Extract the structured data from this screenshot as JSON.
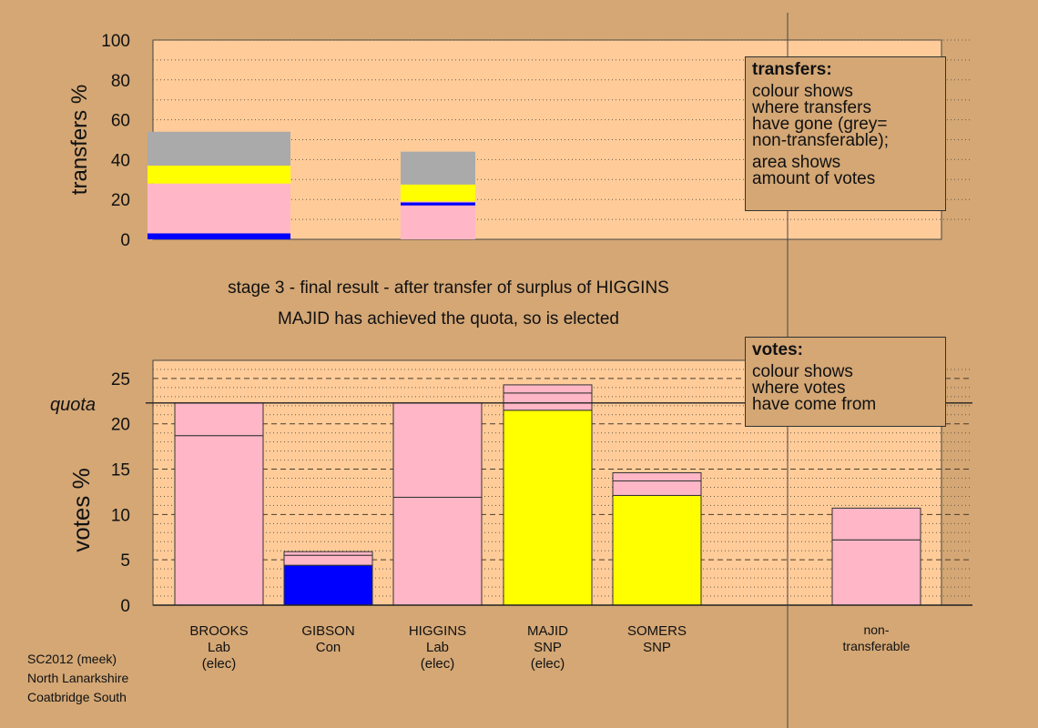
{
  "chart_data": [
    {
      "type": "bar",
      "stacked": true,
      "ylabel": "transfers %",
      "ylim": [
        0,
        100
      ],
      "yticks": [
        0,
        20,
        40,
        60,
        80,
        100
      ],
      "grid": true,
      "bars": [
        {
          "segments": [
            {
              "color": "#0000ff",
              "value": 3
            },
            {
              "color": "#ffb6c6",
              "value": 25
            },
            {
              "color": "#ffff00",
              "value": 9
            },
            {
              "color": "#aaaaaa",
              "value": 17
            }
          ]
        },
        {
          "segments": [
            {
              "color": "#ffb6c6",
              "value": 17
            },
            {
              "color": "#0000ff",
              "value": 1.5
            },
            {
              "color": "#ffb6c6",
              "value": 0.5
            },
            {
              "color": "#ffff00",
              "value": 8.5
            },
            {
              "color": "#aaaaaa",
              "value": 16.5
            }
          ]
        }
      ]
    },
    {
      "type": "bar",
      "stacked": true,
      "ylabel": "votes %",
      "ylim": [
        0,
        27
      ],
      "yticks": [
        0,
        5,
        10,
        15,
        20,
        25
      ],
      "grid": true,
      "quota": 22.3,
      "quota_label": "quota",
      "categories": [
        {
          "lines": [
            "BROOKS",
            "Lab",
            "(elec)"
          ],
          "segments": [
            {
              "color": "#ffb6c6",
              "value": 18.7
            },
            {
              "color": "#ffb6c6",
              "value": 3.6
            }
          ]
        },
        {
          "lines": [
            "GIBSON",
            "Con"
          ],
          "segments": [
            {
              "color": "#0000ff",
              "value": 4.4
            },
            {
              "color": "#ffb6c6",
              "value": 1.1
            },
            {
              "color": "#ffb6c6",
              "value": 0.4
            }
          ]
        },
        {
          "lines": [
            "HIGGINS",
            "Lab",
            "(elec)"
          ],
          "segments": [
            {
              "color": "#ffb6c6",
              "value": 11.9
            },
            {
              "color": "#ffb6c6",
              "value": 10.4
            }
          ]
        },
        {
          "lines": [
            "MAJID",
            "SNP",
            "(elec)"
          ],
          "segments": [
            {
              "color": "#ffff00",
              "value": 21.5
            },
            {
              "color": "#ffb6c6",
              "value": 1.9
            },
            {
              "color": "#ffb6c6",
              "value": 0.9
            }
          ]
        },
        {
          "lines": [
            "SOMERS",
            "SNP"
          ],
          "segments": [
            {
              "color": "#ffff00",
              "value": 12.1
            },
            {
              "color": "#ffb6c6",
              "value": 1.6
            },
            {
              "color": "#ffb6c6",
              "value": 0.9
            }
          ]
        },
        {
          "lines": [
            "non-",
            "transferable"
          ],
          "segments": [
            {
              "color": "#ffb6c6",
              "value": 7.2
            },
            {
              "color": "#ffb6c6",
              "value": 3.5
            }
          ]
        }
      ]
    }
  ],
  "captions": {
    "line1": "stage 3 - final result - after transfer of surplus of HIGGINS",
    "line2": "MAJID has achieved the quota, so is elected"
  },
  "legend_transfers": {
    "title": "transfers:",
    "l1": "colour shows",
    "l2": "where transfers",
    "l3": "have gone (grey=",
    "l4": "non-transferable);",
    "l5": "area shows",
    "l6": "amount of votes"
  },
  "legend_votes": {
    "title": "votes:",
    "l1": "colour shows",
    "l2": "where votes",
    "l3": "have come from"
  },
  "footer": {
    "l1": "SC2012 (meek)",
    "l2": "North Lanarkshire",
    "l3": "Coatbridge South"
  }
}
